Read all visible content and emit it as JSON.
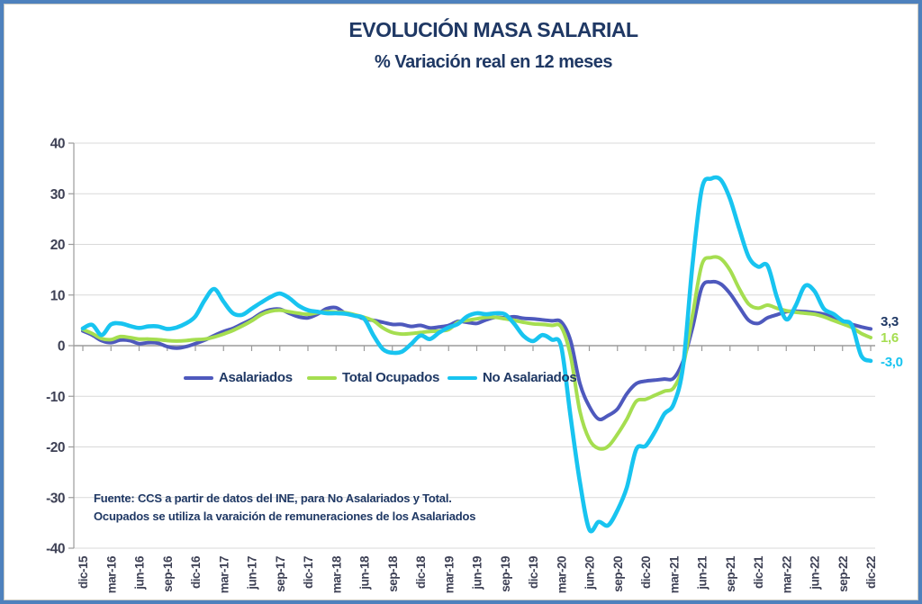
{
  "chart_data": {
    "type": "line",
    "title": "EVOLUCIÓN MASA SALARIAL",
    "subtitle": "% Variación real en 12 meses",
    "source_note_line1": "Fuente: CCS a partir de datos del INE, para No Asalariados y Total.",
    "source_note_line2": "Ocupados se utiliza la varaición de remuneraciones de los Asalariados",
    "ylabel": "",
    "xlabel": "",
    "ylim": [
      -40,
      40
    ],
    "ytick_step": 10,
    "grid": "horizontal",
    "legend_position": "inside-middle-left",
    "months_per_x_tick": 3,
    "x_tick_labels": [
      "dic-15",
      "mar-16",
      "jun-16",
      "sep-16",
      "dic-16",
      "mar-17",
      "jun-17",
      "sep-17",
      "dic-17",
      "mar-18",
      "jun-18",
      "sep-18",
      "dic-18",
      "mar-19",
      "jun-19",
      "sep-19",
      "dic-19",
      "mar-20",
      "jun-20",
      "sep-20",
      "dic-20",
      "mar-21",
      "jun-21",
      "sep-21",
      "dic-21",
      "mar-22",
      "jun-22",
      "sep-22",
      "dic-22"
    ],
    "colors": {
      "title_text": "#1F3864",
      "axis_text": "#3E4155",
      "gridline": "#D9D9D9",
      "axis_line": "#9B9B9B",
      "frame_border": "#4E81BD"
    },
    "series": [
      {
        "name": "Asalariados",
        "color": "#4E59BD",
        "end_label": "3,3",
        "values": [
          2.9,
          2.1,
          1.0,
          0.6,
          1.1,
          1.0,
          0.4,
          0.6,
          0.5,
          -0.2,
          -0.5,
          -0.2,
          0.4,
          1.1,
          2.0,
          2.8,
          3.4,
          4.3,
          5.2,
          6.4,
          7.1,
          7.2,
          6.4,
          5.7,
          5.5,
          6.2,
          7.3,
          7.5,
          6.4,
          6.0,
          5.3,
          5.0,
          4.6,
          4.2,
          4.2,
          3.8,
          4.0,
          3.5,
          3.7,
          4.0,
          4.8,
          4.6,
          4.4,
          5.1,
          5.6,
          5.5,
          5.7,
          5.4,
          5.3,
          5.1,
          4.9,
          4.7,
          1.0,
          -7.5,
          -12.0,
          -14.5,
          -13.8,
          -12.5,
          -9.5,
          -7.5,
          -7.0,
          -6.8,
          -6.6,
          -6.4,
          -3.0,
          3.5,
          11.5,
          12.6,
          12.2,
          10.3,
          7.6,
          5.0,
          4.4,
          5.5,
          6.1,
          6.7,
          6.8,
          6.7,
          6.5,
          6.2,
          5.6,
          4.8,
          4.2,
          3.7,
          3.3
        ]
      },
      {
        "name": "Total Ocupados",
        "color": "#A5DE50",
        "end_label": "1,6",
        "values": [
          3.2,
          2.4,
          1.4,
          1.2,
          1.8,
          1.6,
          1.3,
          1.3,
          1.2,
          1.0,
          0.9,
          1.0,
          1.2,
          1.3,
          1.7,
          2.3,
          3.0,
          3.9,
          4.9,
          6.1,
          6.8,
          7.0,
          6.7,
          6.4,
          6.2,
          6.5,
          6.7,
          6.6,
          6.5,
          6.1,
          5.6,
          4.9,
          3.5,
          2.6,
          2.3,
          2.4,
          2.6,
          2.8,
          2.9,
          3.2,
          4.6,
          5.0,
          5.3,
          5.6,
          5.6,
          5.3,
          5.0,
          4.6,
          4.3,
          4.2,
          4.0,
          3.7,
          -2.0,
          -13.0,
          -18.5,
          -20.3,
          -19.9,
          -17.5,
          -14.5,
          -11.0,
          -10.6,
          -9.8,
          -9.0,
          -8.3,
          -4.0,
          6.0,
          16.0,
          17.4,
          17.2,
          14.9,
          11.2,
          8.2,
          7.4,
          8.0,
          7.4,
          6.9,
          6.6,
          6.4,
          6.2,
          5.7,
          5.0,
          4.3,
          3.6,
          2.4,
          1.6
        ]
      },
      {
        "name": "No Asalariados",
        "color": "#18C4F0",
        "end_label": "-3,0",
        "values": [
          3.4,
          4.1,
          2.1,
          4.2,
          4.4,
          3.9,
          3.5,
          3.8,
          3.8,
          3.3,
          3.6,
          4.4,
          5.8,
          9.0,
          11.2,
          8.7,
          6.4,
          6.1,
          7.3,
          8.5,
          9.6,
          10.3,
          9.4,
          7.9,
          7.0,
          6.7,
          6.4,
          6.4,
          6.3,
          5.9,
          5.3,
          2.0,
          -0.7,
          -1.4,
          -1.2,
          0.3,
          2.0,
          1.3,
          2.6,
          3.6,
          4.3,
          5.8,
          6.4,
          6.2,
          6.4,
          6.2,
          4.3,
          1.9,
          0.9,
          2.1,
          1.2,
          -0.2,
          -14.0,
          -27.0,
          -36.3,
          -34.8,
          -35.5,
          -32.5,
          -28.0,
          -20.5,
          -19.8,
          -17.0,
          -13.5,
          -11.5,
          -4.0,
          16.0,
          31.0,
          33.0,
          32.8,
          29.0,
          23.0,
          17.5,
          15.6,
          15.8,
          9.6,
          5.2,
          7.9,
          11.8,
          10.8,
          7.3,
          6.3,
          4.9,
          4.0,
          -2.0,
          -3.0
        ]
      }
    ]
  }
}
